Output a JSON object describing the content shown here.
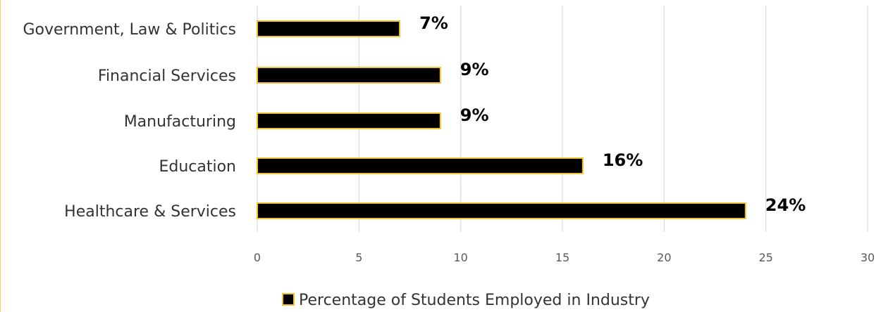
{
  "chart_data": {
    "type": "bar",
    "orientation": "horizontal",
    "categories": [
      "Healthcare & Services",
      "Education",
      "Manufacturing",
      "Financial Services",
      "Government, Law & Politics"
    ],
    "series": [
      {
        "name": "Percentage of Students Employed in Industry",
        "values": [
          24,
          16,
          9,
          9,
          7
        ]
      }
    ],
    "data_labels": [
      "24%",
      "16%",
      "9%",
      "9%",
      "7%"
    ],
    "xlim": [
      0,
      30
    ],
    "xticks": [
      0,
      5,
      10,
      15,
      20,
      25,
      30
    ],
    "xlabel": "",
    "ylabel": "",
    "title": "",
    "grid": "vertical",
    "legend_position": "bottom",
    "colors": {
      "bar_fill": "#000000",
      "bar_border": "#f2c12e",
      "grid": "#d9d9d9"
    }
  }
}
